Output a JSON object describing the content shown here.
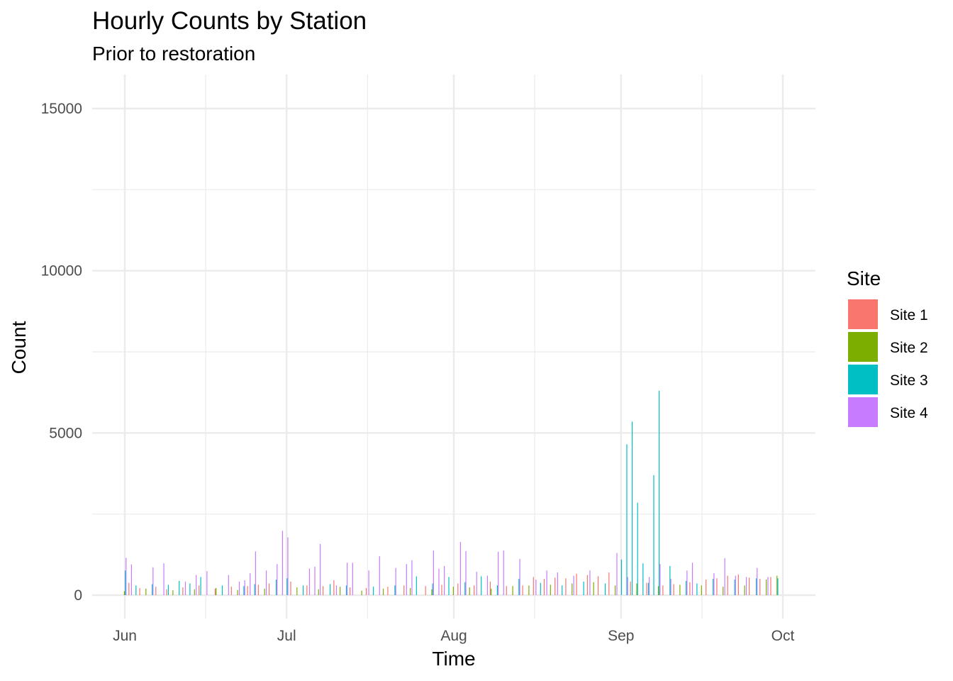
{
  "chart_data": {
    "type": "bar",
    "title": "Hourly Counts by Station",
    "subtitle": "Prior to restoration",
    "xlabel": "Time",
    "ylabel": "Count",
    "x_range": [
      "2023-06-01",
      "2023-10-01"
    ],
    "x_ticks": [
      {
        "date": "2023-06-01",
        "label": "Jun"
      },
      {
        "date": "2023-07-01",
        "label": "Jul"
      },
      {
        "date": "2023-08-01",
        "label": "Aug"
      },
      {
        "date": "2023-09-01",
        "label": "Sep"
      },
      {
        "date": "2023-10-01",
        "label": "Oct"
      }
    ],
    "ylim": [
      0,
      15000
    ],
    "y_ticks": [
      0,
      5000,
      10000,
      15000
    ],
    "grid": true,
    "legend_title": "Site",
    "legend_position": "right",
    "series": [
      {
        "name": "Site 1",
        "color": "#F8766D",
        "points": [
          [
            "2023-06-02",
            380
          ],
          [
            "2023-06-04",
            220
          ],
          [
            "2023-06-07",
            260
          ],
          [
            "2023-06-09",
            180
          ],
          [
            "2023-06-12",
            240
          ],
          [
            "2023-06-15",
            300
          ],
          [
            "2023-06-18",
            200
          ],
          [
            "2023-06-21",
            260
          ],
          [
            "2023-06-24",
            280
          ],
          [
            "2023-06-26",
            320
          ],
          [
            "2023-06-28",
            360
          ],
          [
            "2023-07-02",
            420
          ],
          [
            "2023-07-05",
            300
          ],
          [
            "2023-07-08",
            280
          ],
          [
            "2023-07-10",
            460
          ],
          [
            "2023-07-13",
            240
          ],
          [
            "2023-07-16",
            220
          ],
          [
            "2023-07-20",
            260
          ],
          [
            "2023-07-23",
            300
          ],
          [
            "2023-07-27",
            280
          ],
          [
            "2023-07-30",
            320
          ],
          [
            "2023-08-02",
            360
          ],
          [
            "2023-08-05",
            300
          ],
          [
            "2023-08-08",
            420
          ],
          [
            "2023-08-11",
            280
          ],
          [
            "2023-08-14",
            300
          ],
          [
            "2023-08-16",
            560
          ],
          [
            "2023-08-18",
            500
          ],
          [
            "2023-08-20",
            540
          ],
          [
            "2023-08-22",
            520
          ],
          [
            "2023-08-24",
            660
          ],
          [
            "2023-08-26",
            620
          ],
          [
            "2023-08-28",
            580
          ],
          [
            "2023-08-30",
            700
          ],
          [
            "2023-09-03",
            420
          ],
          [
            "2023-09-06",
            380
          ],
          [
            "2023-09-09",
            300
          ],
          [
            "2023-09-11",
            340
          ],
          [
            "2023-09-14",
            400
          ],
          [
            "2023-09-17",
            480
          ],
          [
            "2023-09-19",
            520
          ],
          [
            "2023-09-21",
            600
          ],
          [
            "2023-09-23",
            640
          ],
          [
            "2023-09-25",
            540
          ],
          [
            "2023-09-27",
            500
          ],
          [
            "2023-09-29",
            560
          ]
        ]
      },
      {
        "name": "Site 2",
        "color": "#7CAE00",
        "points": [
          [
            "2023-06-01",
            120
          ],
          [
            "2023-06-05",
            200
          ],
          [
            "2023-06-10",
            150
          ],
          [
            "2023-06-14",
            180
          ],
          [
            "2023-06-18",
            220
          ],
          [
            "2023-06-22",
            160
          ],
          [
            "2023-06-27",
            200
          ],
          [
            "2023-07-03",
            240
          ],
          [
            "2023-07-07",
            180
          ],
          [
            "2023-07-11",
            260
          ],
          [
            "2023-07-15",
            140
          ],
          [
            "2023-07-19",
            200
          ],
          [
            "2023-07-24",
            220
          ],
          [
            "2023-07-28",
            180
          ],
          [
            "2023-08-01",
            260
          ],
          [
            "2023-08-04",
            240
          ],
          [
            "2023-08-08",
            200
          ],
          [
            "2023-08-12",
            280
          ],
          [
            "2023-08-15",
            300
          ],
          [
            "2023-08-19",
            320
          ],
          [
            "2023-08-23",
            360
          ],
          [
            "2023-08-27",
            400
          ],
          [
            "2023-08-31",
            300
          ],
          [
            "2023-09-04",
            360
          ],
          [
            "2023-09-08",
            280
          ],
          [
            "2023-09-12",
            320
          ],
          [
            "2023-09-16",
            300
          ],
          [
            "2023-09-20",
            260
          ],
          [
            "2023-09-24",
            300
          ],
          [
            "2023-09-28",
            480
          ],
          [
            "2023-09-30",
            600
          ]
        ]
      },
      {
        "name": "Site 3",
        "color": "#00BFC4",
        "points": [
          [
            "2023-06-01",
            760
          ],
          [
            "2023-06-03",
            300
          ],
          [
            "2023-06-06",
            340
          ],
          [
            "2023-06-09",
            320
          ],
          [
            "2023-06-11",
            440
          ],
          [
            "2023-06-13",
            360
          ],
          [
            "2023-06-15",
            560
          ],
          [
            "2023-06-19",
            300
          ],
          [
            "2023-06-23",
            280
          ],
          [
            "2023-06-25",
            340
          ],
          [
            "2023-06-29",
            480
          ],
          [
            "2023-07-01",
            520
          ],
          [
            "2023-07-04",
            300
          ],
          [
            "2023-07-09",
            340
          ],
          [
            "2023-07-12",
            300
          ],
          [
            "2023-07-17",
            260
          ],
          [
            "2023-07-21",
            300
          ],
          [
            "2023-07-25",
            580
          ],
          [
            "2023-07-28",
            360
          ],
          [
            "2023-07-31",
            560
          ],
          [
            "2023-08-03",
            400
          ],
          [
            "2023-08-06",
            580
          ],
          [
            "2023-08-09",
            300
          ],
          [
            "2023-08-13",
            500
          ],
          [
            "2023-08-17",
            380
          ],
          [
            "2023-08-21",
            300
          ],
          [
            "2023-08-25",
            420
          ],
          [
            "2023-08-29",
            360
          ],
          [
            "2023-09-01",
            1100
          ],
          [
            "2023-09-02",
            4650
          ],
          [
            "2023-09-03",
            5350
          ],
          [
            "2023-09-04",
            2850
          ],
          [
            "2023-09-05",
            980
          ],
          [
            "2023-09-06",
            380
          ],
          [
            "2023-09-07",
            3700
          ],
          [
            "2023-09-08",
            6300
          ],
          [
            "2023-09-10",
            900
          ],
          [
            "2023-09-13",
            440
          ],
          [
            "2023-09-15",
            360
          ],
          [
            "2023-09-18",
            500
          ],
          [
            "2023-09-22",
            480
          ],
          [
            "2023-09-26",
            520
          ],
          [
            "2023-09-30",
            520
          ]
        ]
      },
      {
        "name": "Site 4",
        "color": "#C77CFF",
        "points": [
          [
            "2023-06-01",
            1150
          ],
          [
            "2023-06-02",
            950
          ],
          [
            "2023-06-06",
            860
          ],
          [
            "2023-06-08",
            980
          ],
          [
            "2023-06-12",
            420
          ],
          [
            "2023-06-14",
            620
          ],
          [
            "2023-06-16",
            740
          ],
          [
            "2023-06-20",
            620
          ],
          [
            "2023-06-22",
            420
          ],
          [
            "2023-06-23",
            460
          ],
          [
            "2023-06-24",
            680
          ],
          [
            "2023-06-25",
            1350
          ],
          [
            "2023-06-27",
            760
          ],
          [
            "2023-06-29",
            960
          ],
          [
            "2023-06-30",
            1980
          ],
          [
            "2023-07-01",
            1780
          ],
          [
            "2023-07-05",
            820
          ],
          [
            "2023-07-06",
            880
          ],
          [
            "2023-07-07",
            1580
          ],
          [
            "2023-07-10",
            300
          ],
          [
            "2023-07-12",
            1000
          ],
          [
            "2023-07-13",
            1000
          ],
          [
            "2023-07-16",
            760
          ],
          [
            "2023-07-18",
            1200
          ],
          [
            "2023-07-21",
            840
          ],
          [
            "2023-07-23",
            960
          ],
          [
            "2023-07-24",
            1080
          ],
          [
            "2023-07-28",
            1380
          ],
          [
            "2023-07-29",
            820
          ],
          [
            "2023-07-30",
            900
          ],
          [
            "2023-08-02",
            1640
          ],
          [
            "2023-08-03",
            1360
          ],
          [
            "2023-08-05",
            720
          ],
          [
            "2023-08-07",
            600
          ],
          [
            "2023-08-09",
            1340
          ],
          [
            "2023-08-10",
            1380
          ],
          [
            "2023-08-13",
            1120
          ],
          [
            "2023-08-16",
            480
          ],
          [
            "2023-08-18",
            760
          ],
          [
            "2023-08-20",
            700
          ],
          [
            "2023-08-23",
            600
          ],
          [
            "2023-08-26",
            760
          ],
          [
            "2023-08-31",
            1300
          ],
          [
            "2023-09-02",
            560
          ],
          [
            "2023-09-06",
            560
          ],
          [
            "2023-09-08",
            960
          ],
          [
            "2023-09-10",
            500
          ],
          [
            "2023-09-13",
            760
          ],
          [
            "2023-09-14",
            1000
          ],
          [
            "2023-09-18",
            680
          ],
          [
            "2023-09-20",
            1140
          ],
          [
            "2023-09-22",
            600
          ],
          [
            "2023-09-24",
            560
          ],
          [
            "2023-09-26",
            840
          ],
          [
            "2023-09-28",
            560
          ]
        ]
      }
    ]
  }
}
